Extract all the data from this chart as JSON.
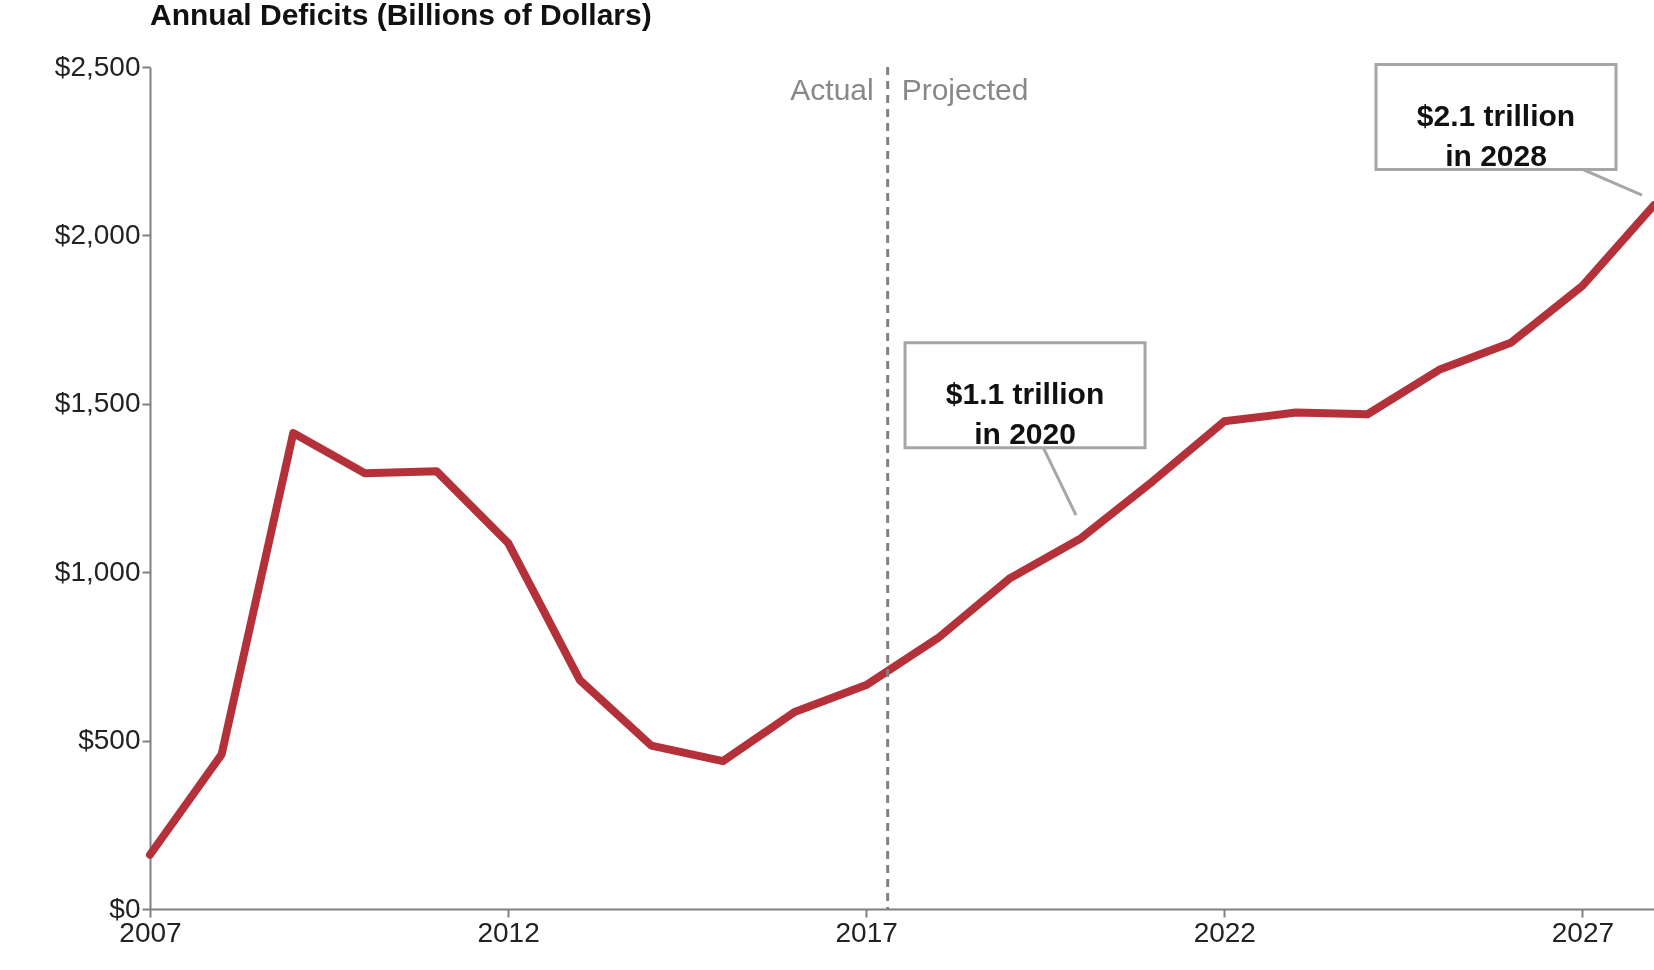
{
  "chart_data": {
    "type": "line",
    "title": "Annual Deficits (Billions of Dollars)",
    "x": [
      2007,
      2008,
      2009,
      2010,
      2011,
      2012,
      2013,
      2014,
      2015,
      2016,
      2017,
      2018,
      2019,
      2020,
      2021,
      2022,
      2023,
      2024,
      2025,
      2026,
      2027,
      2028
    ],
    "series": [
      {
        "color": "#b5313a",
        "values": [
          161,
          459,
          1413,
          1294,
          1300,
          1087,
          680,
          485,
          439,
          585,
          665,
          804,
          981,
          1101,
          1270,
          1448,
          1474,
          1469,
          1601,
          1681,
          1850,
          2090
        ]
      }
    ],
    "xlim": [
      2007,
      2028
    ],
    "xticks": [
      2007,
      2012,
      2017,
      2022,
      2027
    ],
    "ylim": [
      0,
      2500
    ],
    "yticks": [
      {
        "value": 0,
        "label": "$0"
      },
      {
        "value": 500,
        "label": "$500"
      },
      {
        "value": 1000,
        "label": "$1,000"
      },
      {
        "value": 1500,
        "label": "$1,500"
      },
      {
        "value": 2000,
        "label": "$2,000"
      },
      {
        "value": 2500,
        "label": "$2,500"
      }
    ],
    "ref_lines": [
      {
        "axis": "x",
        "value": 2017.3,
        "color": "#808080",
        "line_style": "dashed"
      }
    ],
    "annotations": [
      "Actual",
      "Projected",
      {
        "text": "$1.1 trillion\nin 2020",
        "x": 2020,
        "y": 1101
      },
      {
        "text": "$2.1 trillion\nin 2028",
        "x": 2028,
        "y": 2090
      }
    ],
    "grid": false,
    "line_style": "solid"
  }
}
